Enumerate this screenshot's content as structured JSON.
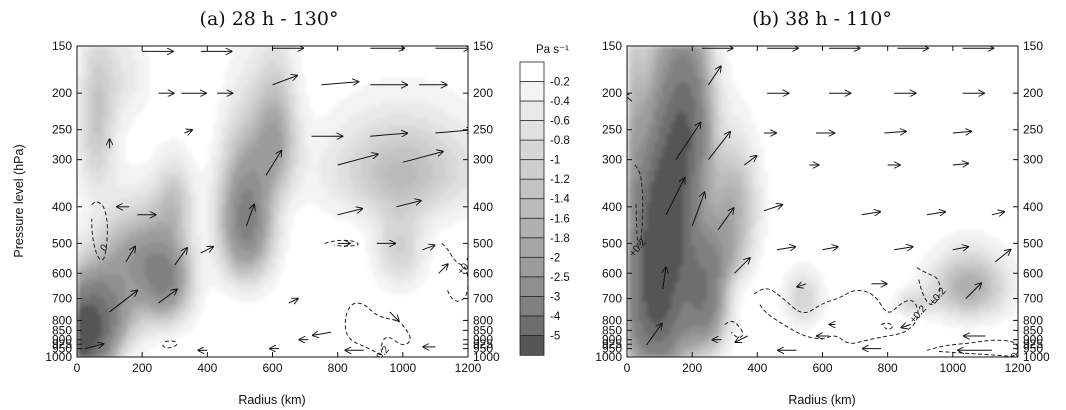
{
  "figure": {
    "colorbar_label": "Pa s⁻¹",
    "colorbar_levels": [
      "-0.2",
      "-0.4",
      "-0.6",
      "-0.8",
      "-1",
      "-1.2",
      "-1.4",
      "-1.6",
      "-1.8",
      "-2",
      "-2.5",
      "-3",
      "-4",
      "-5"
    ],
    "colorbar_colors": [
      "#ffffff",
      "#f3f3f3",
      "#e9e9e9",
      "#e0e0e0",
      "#d6d6d6",
      "#cdcdcd",
      "#c3c3c3",
      "#bababa",
      "#b0b0b0",
      "#a6a6a6",
      "#9c9c9c",
      "#8f8f8f",
      "#808080",
      "#6e6e6e",
      "#555555"
    ]
  },
  "chart_data": [
    {
      "type": "heatmap",
      "title": "(a) 28 h - 130°",
      "xlabel": "Radius (km)",
      "ylabel": "Pressure level (hPa)",
      "xlim": [
        0,
        1200
      ],
      "ylim": [
        1000,
        150
      ],
      "x_ticks": [
        "0",
        "200",
        "400",
        "600",
        "800",
        "1000",
        "1200"
      ],
      "y_ticks": [
        "150",
        "200",
        "250",
        "300",
        "400",
        "500",
        "600",
        "700",
        "800",
        "850",
        "900",
        "925",
        "950",
        "1000"
      ],
      "field": "omega (Pa s⁻¹), shaded",
      "blobs": [
        {
          "x": 15,
          "p": 900,
          "sx": 60,
          "sp": 150,
          "v": -5.5
        },
        {
          "x": 80,
          "p": 740,
          "sx": 75,
          "sp": 130,
          "v": -2.6
        },
        {
          "x": 170,
          "p": 530,
          "sx": 70,
          "sp": 100,
          "v": -1.6
        },
        {
          "x": 270,
          "p": 620,
          "sx": 55,
          "sp": 120,
          "v": -3.0
        },
        {
          "x": 300,
          "p": 380,
          "sx": 40,
          "sp": 60,
          "v": -1.0
        },
        {
          "x": 60,
          "p": 240,
          "sx": 40,
          "sp": 80,
          "v": -1.2
        },
        {
          "x": 520,
          "p": 430,
          "sx": 55,
          "sp": 120,
          "v": -3.4
        },
        {
          "x": 610,
          "p": 260,
          "sx": 45,
          "sp": 70,
          "v": -1.8
        },
        {
          "x": 1000,
          "p": 320,
          "sx": 160,
          "sp": 70,
          "v": -1.4
        },
        {
          "x": 990,
          "p": 520,
          "sx": 55,
          "sp": 90,
          "v": -1.0
        },
        {
          "x": 140,
          "p": 180,
          "sx": 60,
          "sp": 40,
          "v": -0.5
        }
      ],
      "contours": [
        {
          "label": "0",
          "level": "0",
          "x": [
            45,
            60,
            85,
            95,
            90,
            80,
            60,
            45,
            45
          ],
          "p": [
            395,
            385,
            400,
            450,
            520,
            560,
            540,
            470,
            395
          ]
        },
        {
          "label": "+0.2",
          "level": "+0.2",
          "x": [
            980,
            920,
            880,
            840,
            820,
            830,
            900,
            940,
            930,
            950,
            1000,
            1030,
            1000,
            980
          ],
          "p": [
            800,
            780,
            720,
            720,
            800,
            900,
            950,
            1000,
            940,
            870,
            940,
            900,
            820,
            800
          ]
        },
        {
          "label": "+0.2",
          "level": "+0.2",
          "x": [
            1120,
            1140,
            1160,
            1200,
            1200,
            1150,
            1120
          ],
          "p": [
            500,
            520,
            560,
            580,
            700,
            720,
            600
          ]
        },
        {
          "label": "",
          "level": "+0.2",
          "x": [
            760,
            800,
            850,
            870,
            820,
            760
          ],
          "p": [
            500,
            490,
            492,
            505,
            510,
            500
          ]
        },
        {
          "label": "",
          "level": "+0.2",
          "x": [
            270,
            300,
            310,
            280,
            260,
            270
          ],
          "p": [
            910,
            905,
            930,
            950,
            935,
            910
          ]
        }
      ],
      "vectors": [
        {
          "x": 25,
          "p": 950,
          "u": 12,
          "w": -3
        },
        {
          "x": 100,
          "p": 760,
          "u": 18,
          "w": -14
        },
        {
          "x": 150,
          "p": 560,
          "u": 6,
          "w": -10
        },
        {
          "x": 185,
          "p": 420,
          "u": 12,
          "w": 0
        },
        {
          "x": 250,
          "p": 720,
          "u": 12,
          "w": -9
        },
        {
          "x": 300,
          "p": 570,
          "u": 8,
          "w": -11
        },
        {
          "x": 380,
          "p": 530,
          "u": 8,
          "w": -4
        },
        {
          "x": 520,
          "p": 450,
          "u": 5,
          "w": -14
        },
        {
          "x": 580,
          "p": 330,
          "u": 10,
          "w": -16
        },
        {
          "x": 650,
          "p": 720,
          "u": 6,
          "w": -3
        },
        {
          "x": 710,
          "p": 900,
          "u": -6,
          "w": 0
        },
        {
          "x": 800,
          "p": 500,
          "u": 8,
          "w": 0
        },
        {
          "x": 920,
          "p": 500,
          "u": 12,
          "w": 0
        },
        {
          "x": 960,
          "p": 760,
          "u": 6,
          "w": 6
        },
        {
          "x": 1060,
          "p": 520,
          "u": 8,
          "w": -3
        },
        {
          "x": 1110,
          "p": 600,
          "u": 6,
          "w": -6
        },
        {
          "x": 160,
          "p": 400,
          "u": -8,
          "w": 0
        },
        {
          "x": 250,
          "p": 200,
          "u": 10,
          "w": 0
        },
        {
          "x": 320,
          "p": 200,
          "u": 16,
          "w": 0
        },
        {
          "x": 430,
          "p": 200,
          "u": 10,
          "w": 0
        },
        {
          "x": 600,
          "p": 190,
          "u": 16,
          "w": -6
        },
        {
          "x": 750,
          "p": 190,
          "u": 24,
          "w": -2
        },
        {
          "x": 900,
          "p": 190,
          "u": 24,
          "w": 0
        },
        {
          "x": 1050,
          "p": 190,
          "u": 18,
          "w": 0
        },
        {
          "x": 720,
          "p": 260,
          "u": 20,
          "w": 0
        },
        {
          "x": 900,
          "p": 260,
          "u": 24,
          "w": -2
        },
        {
          "x": 1100,
          "p": 255,
          "u": 24,
          "w": -2
        },
        {
          "x": 800,
          "p": 310,
          "u": 26,
          "w": -7
        },
        {
          "x": 1000,
          "p": 305,
          "u": 26,
          "w": -7
        },
        {
          "x": 800,
          "p": 420,
          "u": 16,
          "w": -4
        },
        {
          "x": 980,
          "p": 400,
          "u": 16,
          "w": -4
        },
        {
          "x": 330,
          "p": 255,
          "u": 5,
          "w": -2
        },
        {
          "x": 200,
          "p": 155,
          "u": 20,
          "w": 0
        },
        {
          "x": 380,
          "p": 155,
          "u": 20,
          "w": 0
        },
        {
          "x": 600,
          "p": 152,
          "u": 20,
          "w": 0
        },
        {
          "x": 900,
          "p": 152,
          "u": 22,
          "w": 0
        },
        {
          "x": 1100,
          "p": 152,
          "u": 22,
          "w": 0
        },
        {
          "x": 100,
          "p": 280,
          "u": 0,
          "w": -6
        },
        {
          "x": 400,
          "p": 960,
          "u": -6,
          "w": 0
        },
        {
          "x": 620,
          "p": 950,
          "u": -6,
          "w": 0
        },
        {
          "x": 880,
          "p": 960,
          "u": -12,
          "w": 0
        },
        {
          "x": 1100,
          "p": 940,
          "u": -8,
          "w": 0
        },
        {
          "x": 780,
          "p": 860,
          "u": -12,
          "w": 2
        }
      ]
    },
    {
      "type": "heatmap",
      "title": "(b) 38 h - 110°",
      "xlabel": "Radius (km)",
      "ylabel": "",
      "xlim": [
        0,
        1200
      ],
      "ylim": [
        1000,
        150
      ],
      "x_ticks": [
        "0",
        "200",
        "400",
        "600",
        "800",
        "1000",
        "1200"
      ],
      "y_ticks": [
        "150",
        "200",
        "250",
        "300",
        "400",
        "500",
        "600",
        "700",
        "800",
        "850",
        "900",
        "925",
        "950",
        "1000"
      ],
      "field": "omega (Pa s⁻¹), shaded",
      "blobs": [
        {
          "x": 90,
          "p": 700,
          "sx": 70,
          "sp": 260,
          "v": -5.5
        },
        {
          "x": 130,
          "p": 400,
          "sx": 60,
          "sp": 140,
          "v": -4.2
        },
        {
          "x": 190,
          "p": 230,
          "sx": 50,
          "sp": 80,
          "v": -3.2
        },
        {
          "x": 240,
          "p": 700,
          "sx": 45,
          "sp": 160,
          "v": -3.4
        },
        {
          "x": 330,
          "p": 390,
          "sx": 50,
          "sp": 90,
          "v": -1.6
        },
        {
          "x": 300,
          "p": 540,
          "sx": 50,
          "sp": 70,
          "v": -1.2
        },
        {
          "x": 540,
          "p": 700,
          "sx": 40,
          "sp": 80,
          "v": -1.0
        },
        {
          "x": 1050,
          "p": 650,
          "sx": 80,
          "sp": 90,
          "v": -1.8
        },
        {
          "x": 880,
          "p": 720,
          "sx": 40,
          "sp": 40,
          "v": -0.8
        },
        {
          "x": 20,
          "p": 250,
          "sx": 20,
          "sp": 120,
          "v": -0.8
        }
      ],
      "contours": [
        {
          "label": "+0.2",
          "level": "+0.2",
          "x": [
            25,
            45,
            50,
            40,
            30,
            25
          ],
          "p": [
            310,
            330,
            420,
            520,
            500,
            310
          ]
        },
        {
          "label": "+0.2",
          "level": "+0.2",
          "x": [
            390,
            430,
            480,
            540,
            600,
            650,
            700,
            760,
            800,
            840,
            880,
            900,
            860,
            800,
            740,
            680,
            640,
            600,
            540,
            480,
            420,
            390
          ],
          "p": [
            680,
            650,
            700,
            780,
            720,
            700,
            660,
            680,
            780,
            720,
            700,
            780,
            860,
            880,
            900,
            930,
            870,
            900,
            880,
            820,
            760,
            680
          ]
        },
        {
          "label": "+0.2",
          "level": "+0.2",
          "x": [
            890,
            920,
            960,
            960,
            930,
            900,
            890
          ],
          "p": [
            580,
            600,
            620,
            700,
            740,
            660,
            580
          ]
        },
        {
          "label": "+0.2",
          "level": "+0.2",
          "x": [
            920,
            980,
            1050,
            1120,
            1200,
            1200,
            1140,
            1060,
            980,
            920
          ],
          "p": [
            960,
            930,
            920,
            900,
            910,
            1000,
            990,
            980,
            970,
            960
          ]
        },
        {
          "label": "",
          "level": "+0.2",
          "x": [
            300,
            320,
            340,
            360,
            340,
            300
          ],
          "p": [
            820,
            800,
            820,
            870,
            900,
            820
          ]
        },
        {
          "label": "",
          "level": "+0.2",
          "x": [
            780,
            800,
            820,
            800,
            780
          ],
          "p": [
            820,
            810,
            830,
            850,
            820
          ]
        }
      ],
      "vectors": [
        {
          "x": 15,
          "p": 210,
          "u": -6,
          "w": -5
        },
        {
          "x": 60,
          "p": 930,
          "u": 10,
          "w": -14
        },
        {
          "x": 110,
          "p": 660,
          "u": 2,
          "w": -14
        },
        {
          "x": 120,
          "p": 420,
          "u": 12,
          "w": -24
        },
        {
          "x": 150,
          "p": 300,
          "u": 16,
          "w": -24
        },
        {
          "x": 200,
          "p": 450,
          "u": 8,
          "w": -22
        },
        {
          "x": 250,
          "p": 300,
          "u": 14,
          "w": -18
        },
        {
          "x": 280,
          "p": 460,
          "u": 10,
          "w": -14
        },
        {
          "x": 330,
          "p": 600,
          "u": 10,
          "w": -10
        },
        {
          "x": 360,
          "p": 310,
          "u": 8,
          "w": -6
        },
        {
          "x": 420,
          "p": 410,
          "u": 12,
          "w": -4
        },
        {
          "x": 460,
          "p": 520,
          "u": 12,
          "w": -2
        },
        {
          "x": 290,
          "p": 900,
          "u": -6,
          "w": 0
        },
        {
          "x": 250,
          "p": 190,
          "u": 8,
          "w": -12
        },
        {
          "x": 200,
          "p": 150,
          "u": -2,
          "w": -12
        },
        {
          "x": 430,
          "p": 200,
          "u": 14,
          "w": 0
        },
        {
          "x": 620,
          "p": 200,
          "u": 14,
          "w": 0
        },
        {
          "x": 820,
          "p": 200,
          "u": 14,
          "w": 0
        },
        {
          "x": 1030,
          "p": 200,
          "u": 14,
          "w": 0
        },
        {
          "x": 230,
          "p": 152,
          "u": 20,
          "w": 0
        },
        {
          "x": 430,
          "p": 152,
          "u": 20,
          "w": 0
        },
        {
          "x": 620,
          "p": 152,
          "u": 20,
          "w": 0
        },
        {
          "x": 830,
          "p": 152,
          "u": 20,
          "w": 0
        },
        {
          "x": 1030,
          "p": 152,
          "u": 20,
          "w": 0
        },
        {
          "x": 420,
          "p": 255,
          "u": 8,
          "w": 0
        },
        {
          "x": 580,
          "p": 255,
          "u": 12,
          "w": 0
        },
        {
          "x": 790,
          "p": 255,
          "u": 14,
          "w": -1
        },
        {
          "x": 1000,
          "p": 255,
          "u": 12,
          "w": -1
        },
        {
          "x": 560,
          "p": 310,
          "u": 6,
          "w": 0
        },
        {
          "x": 800,
          "p": 310,
          "u": 8,
          "w": 0
        },
        {
          "x": 1000,
          "p": 310,
          "u": 10,
          "w": -1
        },
        {
          "x": 720,
          "p": 420,
          "u": 12,
          "w": -2
        },
        {
          "x": 920,
          "p": 420,
          "u": 12,
          "w": -2
        },
        {
          "x": 1120,
          "p": 420,
          "u": 8,
          "w": -2
        },
        {
          "x": 600,
          "p": 520,
          "u": 10,
          "w": -2
        },
        {
          "x": 820,
          "p": 520,
          "u": 12,
          "w": -2
        },
        {
          "x": 1000,
          "p": 520,
          "u": 10,
          "w": -2
        },
        {
          "x": 1130,
          "p": 560,
          "u": 10,
          "w": -8
        },
        {
          "x": 1040,
          "p": 700,
          "u": 10,
          "w": -10
        },
        {
          "x": 750,
          "p": 640,
          "u": 10,
          "w": 0
        },
        {
          "x": 550,
          "p": 640,
          "u": -6,
          "w": 2
        },
        {
          "x": 870,
          "p": 820,
          "u": -6,
          "w": 2
        },
        {
          "x": 620,
          "p": 880,
          "u": -8,
          "w": 0
        },
        {
          "x": 1100,
          "p": 880,
          "u": -14,
          "w": 0
        },
        {
          "x": 1120,
          "p": 960,
          "u": -22,
          "w": 0
        },
        {
          "x": 780,
          "p": 950,
          "u": -12,
          "w": 0
        },
        {
          "x": 520,
          "p": 960,
          "u": -12,
          "w": 0
        },
        {
          "x": 370,
          "p": 880,
          "u": -8,
          "w": 4
        },
        {
          "x": 640,
          "p": 820,
          "u": -4,
          "w": 0
        }
      ]
    }
  ]
}
